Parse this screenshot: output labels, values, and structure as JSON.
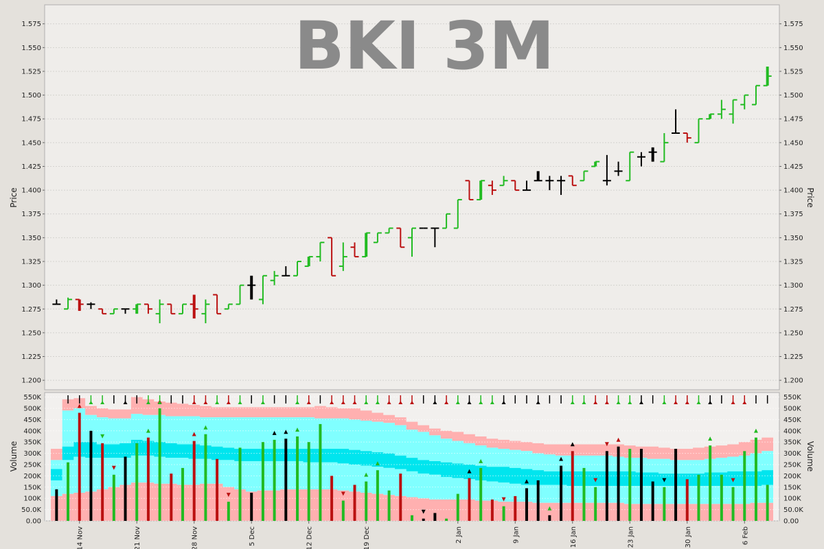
{
  "chart_data": [
    {
      "type": "ohlc",
      "title": "BKI 3M",
      "ylabel": "Price",
      "ylim": [
        1.19,
        1.595
      ],
      "yticks": [
        "1.200",
        "1.225",
        "1.250",
        "1.275",
        "1.300",
        "1.325",
        "1.350",
        "1.375",
        "1.400",
        "1.425",
        "1.450",
        "1.475",
        "1.500",
        "1.525",
        "1.550",
        "1.575"
      ],
      "grid": true,
      "colors": {
        "up": "#22bb22",
        "down": "#bb1111",
        "unchanged": "#000000"
      },
      "bars": [
        {
          "o": 1.28,
          "h": 1.285,
          "l": 1.28,
          "c": 1.28
        },
        {
          "o": 1.275,
          "h": 1.287,
          "l": 1.275,
          "c": 1.285
        },
        {
          "o": 1.285,
          "h": 1.285,
          "l": 1.273,
          "c": 1.28
        },
        {
          "o": 1.28,
          "h": 1.282,
          "l": 1.275,
          "c": 1.28
        },
        {
          "o": 1.275,
          "h": 1.275,
          "l": 1.27,
          "c": 1.27
        },
        {
          "o": 1.27,
          "h": 1.275,
          "l": 1.27,
          "c": 1.275
        },
        {
          "o": 1.275,
          "h": 1.275,
          "l": 1.27,
          "c": 1.275
        },
        {
          "o": 1.275,
          "h": 1.28,
          "l": 1.27,
          "c": 1.28
        },
        {
          "o": 1.28,
          "h": 1.28,
          "l": 1.27,
          "c": 1.275
        },
        {
          "o": 1.27,
          "h": 1.285,
          "l": 1.26,
          "c": 1.28
        },
        {
          "o": 1.28,
          "h": 1.28,
          "l": 1.27,
          "c": 1.27
        },
        {
          "o": 1.27,
          "h": 1.28,
          "l": 1.27,
          "c": 1.28
        },
        {
          "o": 1.28,
          "h": 1.29,
          "l": 1.265,
          "c": 1.275
        },
        {
          "o": 1.27,
          "h": 1.285,
          "l": 1.26,
          "c": 1.28
        },
        {
          "o": 1.29,
          "h": 1.29,
          "l": 1.27,
          "c": 1.27
        },
        {
          "o": 1.275,
          "h": 1.28,
          "l": 1.275,
          "c": 1.28
        },
        {
          "o": 1.28,
          "h": 1.3,
          "l": 1.28,
          "c": 1.3
        },
        {
          "o": 1.3,
          "h": 1.31,
          "l": 1.285,
          "c": 1.3
        },
        {
          "o": 1.285,
          "h": 1.31,
          "l": 1.28,
          "c": 1.31
        },
        {
          "o": 1.305,
          "h": 1.315,
          "l": 1.3,
          "c": 1.31
        },
        {
          "o": 1.31,
          "h": 1.32,
          "l": 1.31,
          "c": 1.31
        },
        {
          "o": 1.31,
          "h": 1.325,
          "l": 1.31,
          "c": 1.325
        },
        {
          "o": 1.32,
          "h": 1.33,
          "l": 1.32,
          "c": 1.33
        },
        {
          "o": 1.33,
          "h": 1.345,
          "l": 1.325,
          "c": 1.345
        },
        {
          "o": 1.35,
          "h": 1.35,
          "l": 1.31,
          "c": 1.31
        },
        {
          "o": 1.32,
          "h": 1.345,
          "l": 1.315,
          "c": 1.33
        },
        {
          "o": 1.34,
          "h": 1.345,
          "l": 1.33,
          "c": 1.33
        },
        {
          "o": 1.33,
          "h": 1.355,
          "l": 1.33,
          "c": 1.355
        },
        {
          "o": 1.345,
          "h": 1.355,
          "l": 1.345,
          "c": 1.355
        },
        {
          "o": 1.355,
          "h": 1.36,
          "l": 1.355,
          "c": 1.36
        },
        {
          "o": 1.36,
          "h": 1.36,
          "l": 1.34,
          "c": 1.34
        },
        {
          "o": 1.35,
          "h": 1.36,
          "l": 1.33,
          "c": 1.36
        },
        {
          "o": 1.36,
          "h": 1.36,
          "l": 1.36,
          "c": 1.36
        },
        {
          "o": 1.36,
          "h": 1.36,
          "l": 1.34,
          "c": 1.36
        },
        {
          "o": 1.36,
          "h": 1.375,
          "l": 1.36,
          "c": 1.375
        },
        {
          "o": 1.36,
          "h": 1.39,
          "l": 1.36,
          "c": 1.39
        },
        {
          "o": 1.41,
          "h": 1.41,
          "l": 1.39,
          "c": 1.39
        },
        {
          "o": 1.39,
          "h": 1.41,
          "l": 1.39,
          "c": 1.41
        },
        {
          "o": 1.405,
          "h": 1.41,
          "l": 1.395,
          "c": 1.4
        },
        {
          "o": 1.405,
          "h": 1.415,
          "l": 1.405,
          "c": 1.41
        },
        {
          "o": 1.41,
          "h": 1.41,
          "l": 1.4,
          "c": 1.4
        },
        {
          "o": 1.4,
          "h": 1.41,
          "l": 1.4,
          "c": 1.4
        },
        {
          "o": 1.41,
          "h": 1.42,
          "l": 1.41,
          "c": 1.41
        },
        {
          "o": 1.41,
          "h": 1.415,
          "l": 1.4,
          "c": 1.41
        },
        {
          "o": 1.41,
          "h": 1.415,
          "l": 1.395,
          "c": 1.41
        },
        {
          "o": 1.415,
          "h": 1.415,
          "l": 1.405,
          "c": 1.405
        },
        {
          "o": 1.41,
          "h": 1.42,
          "l": 1.41,
          "c": 1.42
        },
        {
          "o": 1.425,
          "h": 1.43,
          "l": 1.425,
          "c": 1.43
        },
        {
          "o": 1.41,
          "h": 1.437,
          "l": 1.405,
          "c": 1.41
        },
        {
          "o": 1.42,
          "h": 1.43,
          "l": 1.415,
          "c": 1.42
        },
        {
          "o": 1.41,
          "h": 1.44,
          "l": 1.41,
          "c": 1.44
        },
        {
          "o": 1.435,
          "h": 1.44,
          "l": 1.425,
          "c": 1.435
        },
        {
          "o": 1.44,
          "h": 1.445,
          "l": 1.43,
          "c": 1.44
        },
        {
          "o": 1.43,
          "h": 1.46,
          "l": 1.43,
          "c": 1.45
        },
        {
          "o": 1.46,
          "h": 1.485,
          "l": 1.46,
          "c": 1.46
        },
        {
          "o": 1.46,
          "h": 1.46,
          "l": 1.45,
          "c": 1.455
        },
        {
          "o": 1.45,
          "h": 1.475,
          "l": 1.45,
          "c": 1.475
        },
        {
          "o": 1.475,
          "h": 1.48,
          "l": 1.475,
          "c": 1.48
        },
        {
          "o": 1.48,
          "h": 1.495,
          "l": 1.475,
          "c": 1.485
        },
        {
          "o": 1.48,
          "h": 1.495,
          "l": 1.47,
          "c": 1.495
        },
        {
          "o": 1.49,
          "h": 1.5,
          "l": 1.485,
          "c": 1.5
        },
        {
          "o": 1.49,
          "h": 1.51,
          "l": 1.49,
          "c": 1.51
        },
        {
          "o": 1.51,
          "h": 1.53,
          "l": 1.51,
          "c": 1.52
        }
      ]
    },
    {
      "type": "bar",
      "ylabel": "Volume",
      "ylim": [
        0,
        570000
      ],
      "yticks": [
        "0.00",
        "50.0K",
        "100K",
        "150K",
        "200K",
        "250K",
        "300K",
        "350K",
        "400K",
        "450K",
        "500K",
        "550K"
      ],
      "xticks": [
        {
          "label": "14 Nov",
          "index": 2
        },
        {
          "label": "21 Nov",
          "index": 7
        },
        {
          "label": "28 Nov",
          "index": 12
        },
        {
          "label": "5 Dec",
          "index": 17
        },
        {
          "label": "12 Dec",
          "index": 22
        },
        {
          "label": "19 Dec",
          "index": 27
        },
        {
          "label": "2 Jan",
          "index": 35
        },
        {
          "label": "9 Jan",
          "index": 40
        },
        {
          "label": "16 Jan",
          "index": 45
        },
        {
          "label": "23 Jan",
          "index": 50
        },
        {
          "label": "30 Jan",
          "index": 55
        },
        {
          "label": "6 Feb",
          "index": 60
        }
      ],
      "values": [
        140000,
        260000,
        480000,
        400000,
        345000,
        205000,
        285000,
        345000,
        370000,
        500000,
        210000,
        235000,
        355000,
        385000,
        275000,
        85000,
        325000,
        125000,
        350000,
        360000,
        365000,
        375000,
        350000,
        430000,
        200000,
        90000,
        160000,
        175000,
        225000,
        135000,
        210000,
        25000,
        10000,
        35000,
        10000,
        120000,
        190000,
        235000,
        95000,
        65000,
        110000,
        145000,
        180000,
        25000,
        245000,
        310000,
        235000,
        150000,
        310000,
        330000,
        320000,
        320000,
        175000,
        150000,
        320000,
        185000,
        205000,
        335000,
        205000,
        150000,
        310000,
        370000,
        160000
      ],
      "band_upper": [
        320000,
        540000,
        545000,
        510000,
        500000,
        495000,
        495000,
        550000,
        540000,
        530000,
        525000,
        520000,
        515000,
        510000,
        505000,
        505000,
        505000,
        505000,
        505000,
        505000,
        505000,
        505000,
        505000,
        510000,
        505000,
        500000,
        500000,
        490000,
        480000,
        470000,
        460000,
        440000,
        425000,
        410000,
        400000,
        395000,
        385000,
        375000,
        365000,
        360000,
        355000,
        350000,
        345000,
        340000,
        340000,
        340000,
        340000,
        340000,
        340000,
        340000,
        335000,
        330000,
        330000,
        325000,
        320000,
        320000,
        325000,
        330000,
        335000,
        340000,
        350000,
        360000,
        370000
      ],
      "band_mid_high": [
        270000,
        490000,
        500000,
        470000,
        460000,
        455000,
        455000,
        475000,
        470000,
        470000,
        465000,
        465000,
        465000,
        460000,
        460000,
        460000,
        460000,
        460000,
        460000,
        460000,
        460000,
        460000,
        460000,
        455000,
        455000,
        455000,
        450000,
        445000,
        440000,
        435000,
        425000,
        405000,
        395000,
        380000,
        365000,
        355000,
        345000,
        335000,
        325000,
        320000,
        315000,
        310000,
        300000,
        295000,
        290000,
        290000,
        290000,
        290000,
        290000,
        285000,
        280000,
        280000,
        275000,
        275000,
        270000,
        270000,
        270000,
        275000,
        280000,
        285000,
        290000,
        300000,
        310000
      ],
      "band_center_high": [
        230000,
        330000,
        350000,
        350000,
        340000,
        340000,
        345000,
        360000,
        355000,
        350000,
        345000,
        340000,
        340000,
        335000,
        330000,
        325000,
        320000,
        320000,
        320000,
        320000,
        320000,
        320000,
        320000,
        320000,
        320000,
        320000,
        315000,
        310000,
        305000,
        300000,
        290000,
        280000,
        270000,
        265000,
        260000,
        255000,
        250000,
        245000,
        240000,
        240000,
        235000,
        230000,
        225000,
        220000,
        220000,
        220000,
        220000,
        220000,
        220000,
        220000,
        220000,
        215000,
        215000,
        210000,
        210000,
        210000,
        210000,
        215000,
        215000,
        220000,
        220000,
        220000,
        225000
      ],
      "band_center_low": [
        180000,
        270000,
        285000,
        280000,
        280000,
        280000,
        280000,
        290000,
        290000,
        285000,
        280000,
        280000,
        275000,
        275000,
        270000,
        270000,
        265000,
        265000,
        265000,
        265000,
        265000,
        265000,
        260000,
        260000,
        260000,
        255000,
        250000,
        245000,
        240000,
        235000,
        230000,
        220000,
        210000,
        205000,
        195000,
        190000,
        185000,
        180000,
        175000,
        170000,
        165000,
        160000,
        160000,
        160000,
        160000,
        155000,
        155000,
        155000,
        155000,
        155000,
        155000,
        155000,
        155000,
        155000,
        155000,
        155000,
        155000,
        155000,
        155000,
        155000,
        155000,
        155000,
        160000
      ],
      "band_lower": [
        110000,
        120000,
        125000,
        130000,
        140000,
        150000,
        160000,
        170000,
        170000,
        165000,
        165000,
        160000,
        160000,
        165000,
        165000,
        150000,
        140000,
        130000,
        135000,
        135000,
        140000,
        140000,
        140000,
        140000,
        140000,
        135000,
        130000,
        125000,
        120000,
        115000,
        110000,
        105000,
        100000,
        95000,
        95000,
        95000,
        95000,
        90000,
        90000,
        85000,
        85000,
        85000,
        80000,
        80000,
        80000,
        80000,
        80000,
        80000,
        80000,
        80000,
        75000,
        75000,
        75000,
        75000,
        75000,
        75000,
        75000,
        75000,
        75000,
        75000,
        75000,
        80000,
        80000
      ],
      "band_colors": {
        "outer": "#ffb0b0",
        "inner": "#80ffff",
        "core": "#00e5ee"
      },
      "signal_row": [
        "black",
        "black",
        "black",
        "green",
        "green",
        "black",
        "black",
        "black",
        "green",
        "green",
        "black",
        "black",
        "red",
        "red",
        "green",
        "red",
        "green",
        "black",
        "green",
        "black",
        "black",
        "green",
        "red",
        "black",
        "red",
        "red",
        "red",
        "green",
        "green",
        "red",
        "red",
        "red",
        "black",
        "black",
        "red",
        "green",
        "black",
        "green",
        "green",
        "black",
        "black",
        "black",
        "black",
        "black",
        "black",
        "green",
        "green",
        "red",
        "red",
        "green",
        "green",
        "black",
        "black",
        "green",
        "red",
        "red",
        "green",
        "black",
        "black",
        "red",
        "red",
        "black",
        "black"
      ],
      "markers": [
        {
          "i": 2,
          "dir": "up",
          "color": "red"
        },
        {
          "i": 4,
          "dir": "down",
          "color": "green"
        },
        {
          "i": 5,
          "dir": "down",
          "color": "red"
        },
        {
          "i": 8,
          "dir": "up",
          "color": "green"
        },
        {
          "i": 9,
          "dir": "up",
          "color": "red"
        },
        {
          "i": 12,
          "dir": "up",
          "color": "red"
        },
        {
          "i": 13,
          "dir": "up",
          "color": "green"
        },
        {
          "i": 15,
          "dir": "down",
          "color": "red"
        },
        {
          "i": 19,
          "dir": "up",
          "color": "black"
        },
        {
          "i": 20,
          "dir": "up",
          "color": "black"
        },
        {
          "i": 21,
          "dir": "up",
          "color": "green"
        },
        {
          "i": 25,
          "dir": "down",
          "color": "red"
        },
        {
          "i": 27,
          "dir": "up",
          "color": "green"
        },
        {
          "i": 28,
          "dir": "up",
          "color": "green"
        },
        {
          "i": 32,
          "dir": "down",
          "color": "black"
        },
        {
          "i": 36,
          "dir": "up",
          "color": "black"
        },
        {
          "i": 37,
          "dir": "up",
          "color": "green"
        },
        {
          "i": 39,
          "dir": "down",
          "color": "red"
        },
        {
          "i": 41,
          "dir": "up",
          "color": "black"
        },
        {
          "i": 43,
          "dir": "up",
          "color": "green"
        },
        {
          "i": 44,
          "dir": "up",
          "color": "black"
        },
        {
          "i": 45,
          "dir": "up",
          "color": "black"
        },
        {
          "i": 47,
          "dir": "down",
          "color": "red"
        },
        {
          "i": 48,
          "dir": "down",
          "color": "red"
        },
        {
          "i": 49,
          "dir": "up",
          "color": "red"
        },
        {
          "i": 53,
          "dir": "down",
          "color": "black"
        },
        {
          "i": 57,
          "dir": "up",
          "color": "green"
        },
        {
          "i": 59,
          "dir": "down",
          "color": "red"
        },
        {
          "i": 61,
          "dir": "up",
          "color": "green"
        }
      ]
    }
  ]
}
